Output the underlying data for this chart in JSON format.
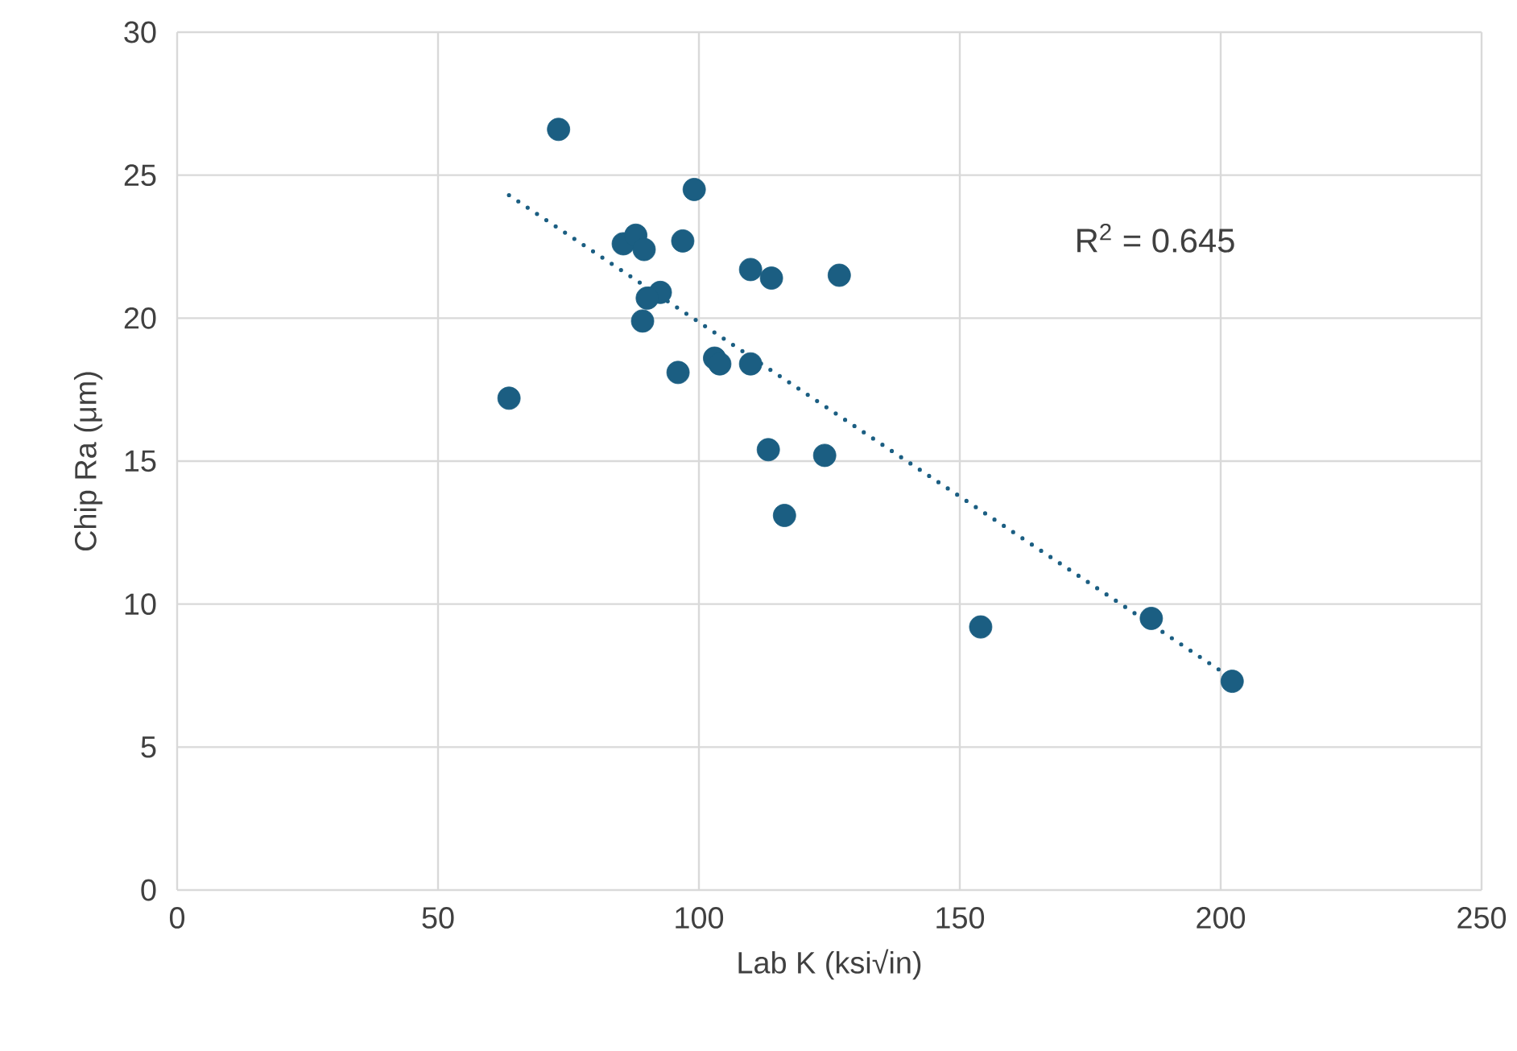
{
  "chart_data": {
    "type": "scatter",
    "xlabel": "Lab K (ksi√in)",
    "ylabel": "Chip Ra (μm)",
    "xlim": [
      0,
      250
    ],
    "ylim": [
      0,
      30
    ],
    "xticks": [
      0,
      50,
      100,
      150,
      200,
      250
    ],
    "yticks": [
      0,
      5,
      10,
      15,
      20,
      25,
      30
    ],
    "grid": true,
    "annotations": [
      "R$^{2}$ = 0.645"
    ],
    "series": [
      {
        "marker": "circle",
        "color": "#1b5e82",
        "x": [
          73.1,
          63.6,
          99.1,
          85.5,
          87.9,
          89.5,
          96.9,
          92.6,
          90.1,
          89.2,
          96,
          103,
          104,
          109.9,
          113.9,
          126.9,
          109.9,
          113.3,
          124.1,
          116.4,
          154,
          186.7,
          202.2
        ],
        "values": [
          26.6,
          17.2,
          24.5,
          22.6,
          22.9,
          22.4,
          22.7,
          20.9,
          20.7,
          19.9,
          18.1,
          18.6,
          18.4,
          21.7,
          21.4,
          21.5,
          18.4,
          15.4,
          15.2,
          13.1,
          9.2,
          9.5,
          7.3
        ]
      },
      {
        "type": "line",
        "marker": "none",
        "line_style": "dotted",
        "color": "#1b5e82",
        "x": [
          63.6,
          202.2
        ],
        "values": [
          24.3,
          7.4
        ]
      }
    ]
  }
}
